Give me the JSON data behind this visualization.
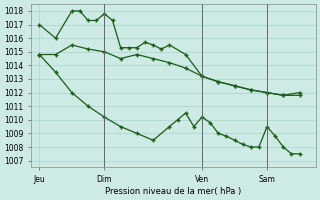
{
  "title": "Pression niveau de la mer( hPa )",
  "bg_color": "#ceeae4",
  "grid_color": "#aad4cc",
  "line_color": "#1a5c1a",
  "ylim": [
    1006.5,
    1018.5
  ],
  "yticks": [
    1007,
    1008,
    1009,
    1010,
    1011,
    1012,
    1013,
    1014,
    1015,
    1016,
    1017,
    1018
  ],
  "xtick_labels": [
    "Jeu",
    "Dim",
    "Ven",
    "Sam"
  ],
  "xtick_positions": [
    0,
    8,
    20,
    28
  ],
  "vline_positions": [
    8,
    20,
    28
  ],
  "xlim": [
    -1,
    34
  ],
  "line1_x": [
    0,
    2,
    4,
    5,
    6,
    7,
    8,
    9,
    10,
    11,
    12,
    13,
    14,
    15,
    16,
    18,
    20,
    22,
    24,
    26,
    28,
    30,
    32
  ],
  "line1_y": [
    1017.0,
    1016.0,
    1018.0,
    1018.0,
    1017.3,
    1017.3,
    1017.8,
    1017.3,
    1015.3,
    1015.3,
    1015.3,
    1015.7,
    1015.5,
    1015.2,
    1015.5,
    1014.8,
    1013.2,
    1012.8,
    1012.5,
    1012.2,
    1012.0,
    1011.8,
    1012.0
  ],
  "line2_x": [
    0,
    2,
    4,
    6,
    8,
    10,
    12,
    14,
    16,
    18,
    20,
    22,
    24,
    26,
    28,
    30,
    32
  ],
  "line2_y": [
    1014.8,
    1014.8,
    1015.5,
    1015.2,
    1015.0,
    1014.5,
    1014.8,
    1014.5,
    1014.2,
    1013.8,
    1013.2,
    1012.8,
    1012.5,
    1012.2,
    1012.0,
    1011.8,
    1011.8
  ],
  "line3_x": [
    0,
    2,
    4,
    6,
    8,
    10,
    12,
    14,
    16,
    17,
    18,
    19,
    20,
    21,
    22,
    23,
    24,
    25,
    26,
    27,
    28,
    29,
    30,
    31,
    32
  ],
  "line3_y": [
    1014.8,
    1013.5,
    1012.0,
    1011.0,
    1010.2,
    1009.5,
    1009.0,
    1008.5,
    1009.5,
    1010.0,
    1010.5,
    1009.5,
    1010.2,
    1009.8,
    1009.0,
    1008.8,
    1008.5,
    1008.2,
    1008.0,
    1008.0,
    1009.5,
    1008.8,
    1008.0,
    1007.5,
    1007.5
  ]
}
